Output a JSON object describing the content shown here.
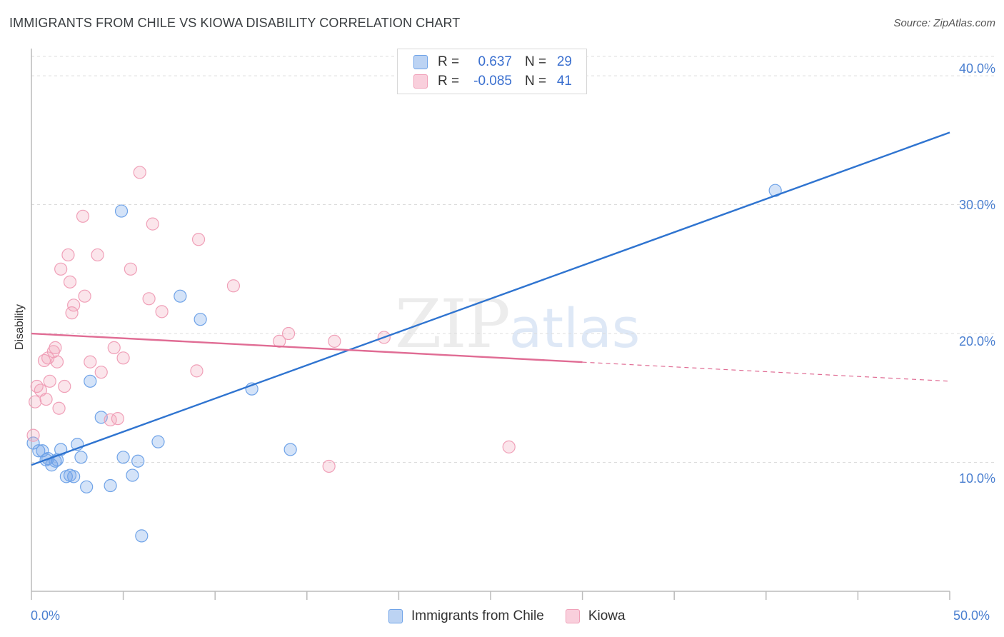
{
  "header": {
    "title": "IMMIGRANTS FROM CHILE VS KIOWA DISABILITY CORRELATION CHART",
    "source": "Source: ZipAtlas.com"
  },
  "watermark": {
    "zip": "ZIP",
    "atlas": "atlas"
  },
  "legend": {
    "rows": [
      {
        "r_label": "R =",
        "r_value": "0.637",
        "n_label": "N =",
        "n_value": "29"
      },
      {
        "r_label": "R =",
        "r_value": "-0.085",
        "n_label": "N =",
        "n_value": "41"
      }
    ]
  },
  "bottom_legend": {
    "items": [
      {
        "label": "Immigrants from Chile"
      },
      {
        "label": "Kiowa"
      }
    ]
  },
  "axes": {
    "y_label": "Disability",
    "y_ticks": [
      "40.0%",
      "30.0%",
      "20.0%",
      "10.0%"
    ],
    "x_ticks": [
      "0.0%",
      "50.0%"
    ]
  },
  "chart_data": {
    "type": "scatter",
    "title": "IMMIGRANTS FROM CHILE VS KIOWA DISABILITY CORRELATION CHART",
    "xlabel": "",
    "ylabel": "Disability",
    "xlim": [
      0,
      50
    ],
    "ylim": [
      0,
      41.5
    ],
    "y_gridlines": [
      10,
      20,
      30,
      40
    ],
    "colors": {
      "chile": "#6fa3e8",
      "chile_line": "#2f74d0",
      "kiowa": "#f0a0b8",
      "kiowa_line": "#e06c94"
    },
    "series": [
      {
        "name": "Immigrants from Chile",
        "color": "#6fa3e8",
        "r": 0.637,
        "n": 29,
        "points": [
          [
            0.1,
            11.5
          ],
          [
            0.4,
            10.9
          ],
          [
            0.6,
            10.9
          ],
          [
            0.8,
            10.2
          ],
          [
            0.9,
            10.3
          ],
          [
            1.1,
            9.8
          ],
          [
            1.3,
            10.1
          ],
          [
            1.4,
            10.2
          ],
          [
            1.6,
            11.0
          ],
          [
            1.9,
            8.9
          ],
          [
            2.1,
            9.0
          ],
          [
            2.3,
            8.9
          ],
          [
            2.5,
            11.4
          ],
          [
            2.7,
            10.4
          ],
          [
            3.0,
            8.1
          ],
          [
            3.2,
            16.3
          ],
          [
            3.8,
            13.5
          ],
          [
            4.3,
            8.2
          ],
          [
            4.9,
            29.5
          ],
          [
            5.0,
            10.4
          ],
          [
            5.5,
            9.0
          ],
          [
            5.8,
            10.1
          ],
          [
            6.0,
            4.3
          ],
          [
            6.9,
            11.6
          ],
          [
            8.1,
            22.9
          ],
          [
            9.2,
            21.1
          ],
          [
            12.0,
            15.7
          ],
          [
            14.1,
            11.0
          ],
          [
            40.5,
            31.1
          ]
        ],
        "trend": {
          "x": [
            0,
            50
          ],
          "y": [
            9.8,
            35.6
          ],
          "dashed_from_x": null
        }
      },
      {
        "name": "Kiowa",
        "color": "#f0a0b8",
        "r": -0.085,
        "n": 41,
        "points": [
          [
            0.1,
            12.1
          ],
          [
            0.2,
            14.7
          ],
          [
            0.3,
            15.9
          ],
          [
            0.5,
            15.6
          ],
          [
            0.7,
            17.9
          ],
          [
            0.8,
            14.9
          ],
          [
            0.9,
            18.1
          ],
          [
            1.0,
            16.3
          ],
          [
            1.2,
            18.6
          ],
          [
            1.3,
            18.9
          ],
          [
            1.4,
            17.8
          ],
          [
            1.5,
            14.2
          ],
          [
            1.6,
            25.0
          ],
          [
            1.8,
            15.9
          ],
          [
            2.0,
            26.1
          ],
          [
            2.1,
            24.0
          ],
          [
            2.2,
            21.6
          ],
          [
            2.3,
            22.2
          ],
          [
            2.8,
            29.1
          ],
          [
            2.9,
            22.9
          ],
          [
            3.2,
            17.8
          ],
          [
            3.6,
            26.1
          ],
          [
            3.8,
            17.0
          ],
          [
            4.3,
            13.3
          ],
          [
            4.5,
            18.9
          ],
          [
            4.7,
            13.4
          ],
          [
            5.0,
            18.1
          ],
          [
            5.4,
            25.0
          ],
          [
            5.9,
            32.5
          ],
          [
            6.4,
            22.7
          ],
          [
            6.6,
            28.5
          ],
          [
            7.1,
            21.7
          ],
          [
            9.0,
            17.1
          ],
          [
            9.1,
            27.3
          ],
          [
            11.0,
            23.7
          ],
          [
            13.5,
            19.4
          ],
          [
            14.0,
            20.0
          ],
          [
            16.2,
            9.7
          ],
          [
            16.5,
            19.4
          ],
          [
            19.2,
            19.7
          ],
          [
            26.0,
            11.2
          ]
        ],
        "trend": {
          "x": [
            0,
            50
          ],
          "y": [
            20.0,
            16.3
          ],
          "dashed_from_x": 30
        }
      }
    ]
  }
}
